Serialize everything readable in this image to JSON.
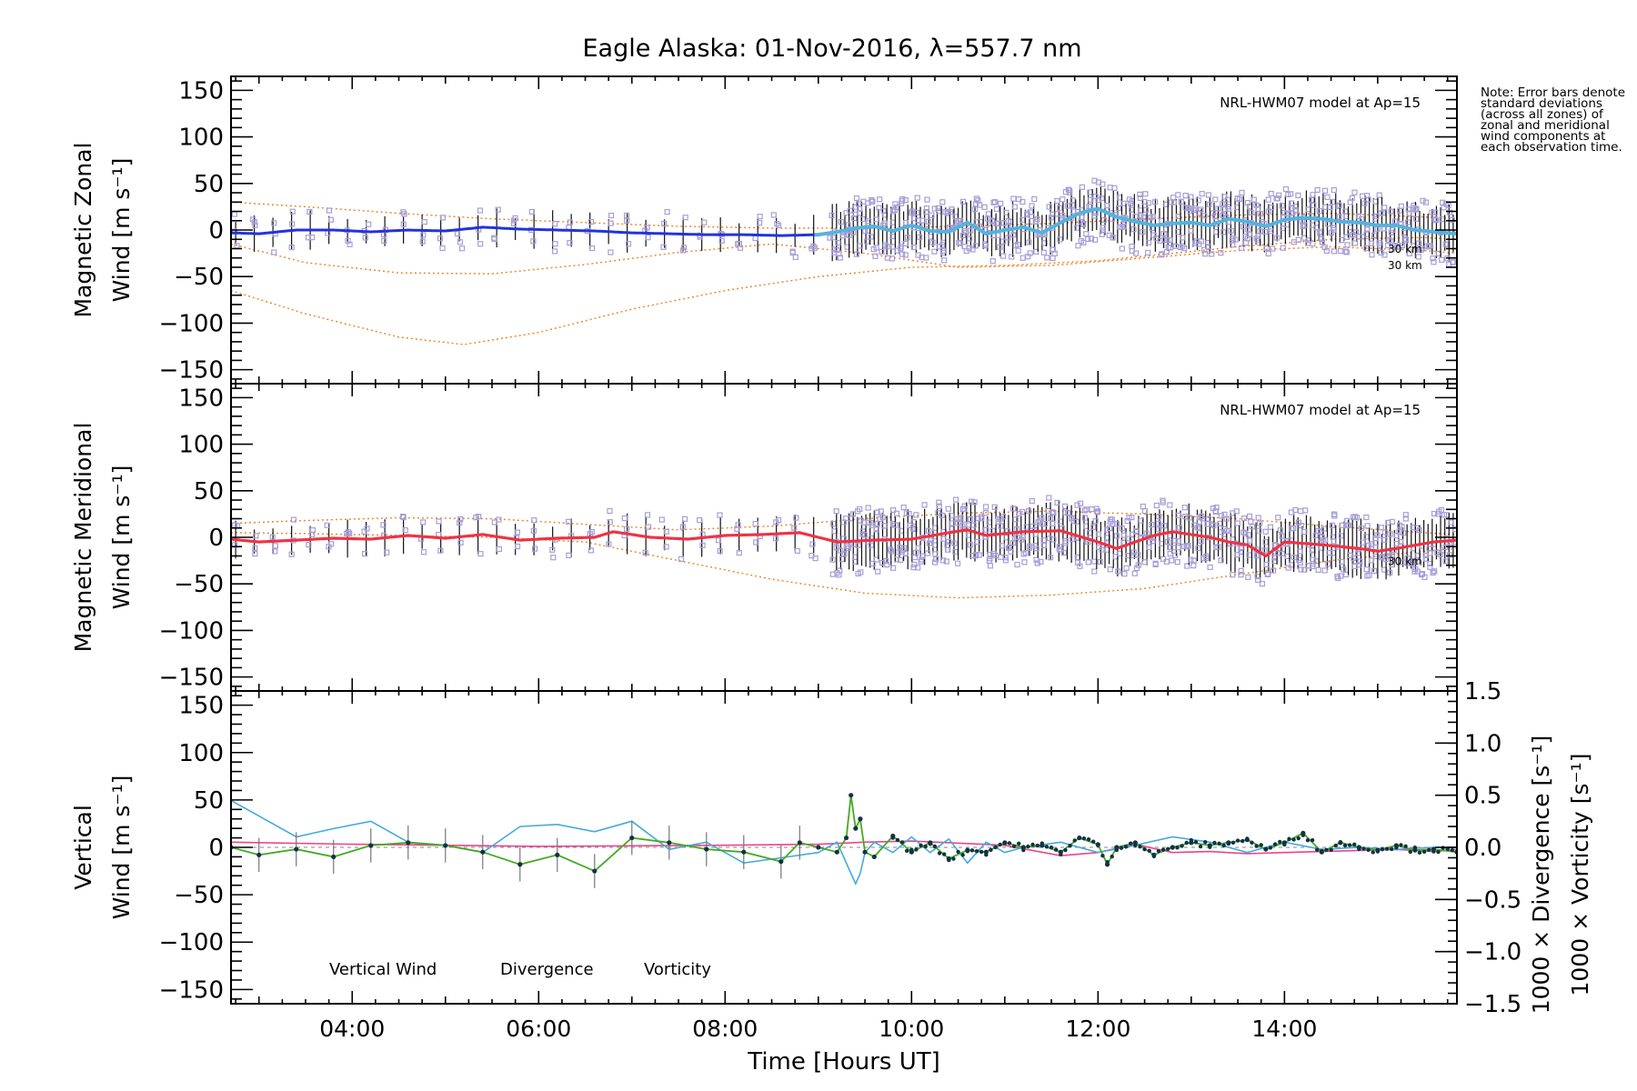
{
  "title": "Eagle Alaska: 01-Nov-2016, λ=557.7 nm",
  "note": "Note: Error bars denote standard deviations (across all zones) of zonal and meridional wind components at each observation time.",
  "colors": {
    "zonal": "#2233dd",
    "zonal_late": "#55b2de",
    "meridional": "#ee3344",
    "vertical": "#44aa22",
    "divergence": "#44aadd",
    "vorticity": "#ee4488",
    "model": "#ee8833",
    "scatter": "#a79fd6"
  },
  "chart_data": [
    {
      "type": "line",
      "panel": "zonal",
      "ylabel_line1": "Magnetic Zonal",
      "ylabel_line2": "Wind",
      "ylabel_unit": "[m s⁻¹]",
      "model_label": "NRL-HWM07 model at Ap=15",
      "model_annotations": [
        "30 km",
        "30 km"
      ],
      "xlim": [
        2.7,
        15.85
      ],
      "ylim": [
        -165,
        165
      ],
      "yticks": [
        150,
        100,
        50,
        0,
        -50,
        -100,
        -150
      ],
      "series": [
        {
          "x": [
            2.7,
            3.0,
            3.4,
            3.8,
            4.2,
            4.6,
            5.0,
            5.4,
            5.8,
            6.2,
            6.6,
            7.0,
            7.4,
            7.8,
            8.2,
            8.6,
            9.0,
            9.2,
            9.4,
            9.6,
            9.8,
            10.0,
            10.2,
            10.4,
            10.6,
            10.8,
            11.0,
            11.2,
            11.4,
            11.6,
            11.8,
            12.0,
            12.2,
            12.4,
            12.6,
            12.8,
            13.0,
            13.2,
            13.4,
            13.6,
            13.8,
            14.0,
            14.2,
            14.4,
            14.6,
            14.8,
            15.0,
            15.2,
            15.4,
            15.6,
            15.85
          ],
          "y": [
            -3,
            -4,
            0,
            0,
            -2,
            0,
            -1,
            3,
            1,
            0,
            -1,
            -3,
            -4,
            -5,
            -5,
            -6,
            -5,
            -2,
            2,
            4,
            -1,
            5,
            -1,
            -2,
            8,
            -4,
            0,
            3,
            -3,
            8,
            18,
            23,
            14,
            9,
            5,
            7,
            8,
            5,
            12,
            9,
            4,
            11,
            13,
            12,
            9,
            8,
            5,
            5,
            0,
            -2,
            -4
          ]
        }
      ],
      "model_curves": [
        {
          "x": [
            2.7,
            3.5,
            4.5,
            5.5,
            6.5,
            7.5,
            8.5,
            9.5,
            10.5,
            11.5,
            12.5,
            13.5,
            14.5,
            15.5,
            15.85
          ],
          "y": [
            30,
            25,
            18,
            12,
            8,
            4,
            2,
            2,
            4,
            7,
            12,
            16,
            18,
            14,
            12
          ]
        },
        {
          "x": [
            2.7,
            3.5,
            4.5,
            5.5,
            6.5,
            7.5,
            8.5,
            9.5,
            10.5,
            11.5,
            12.5,
            13.5,
            14.5,
            15.5,
            15.85
          ],
          "y": [
            -15,
            -35,
            -46,
            -47,
            -37,
            -24,
            -15,
            -25,
            -40,
            -38,
            -30,
            -22,
            -18,
            -22,
            -25
          ]
        },
        {
          "x": [
            2.7,
            3.5,
            4.5,
            5.2,
            6.0,
            7.0,
            8.0,
            9.0,
            10.0,
            11.0,
            12.0,
            12.5,
            13.5,
            14.5,
            15.5,
            15.85
          ],
          "y": [
            -65,
            -90,
            -115,
            -123,
            -110,
            -85,
            -65,
            -50,
            -40,
            -38,
            -33,
            -28,
            -18,
            -10,
            -8,
            -10
          ]
        }
      ]
    },
    {
      "type": "line",
      "panel": "meridional",
      "ylabel_line1": "Magnetic Meridional",
      "ylabel_line2": "Wind",
      "ylabel_unit": "[m s⁻¹]",
      "model_label": "NRL-HWM07 model at Ap=15",
      "model_annotations": [
        "30 km"
      ],
      "xlim": [
        2.7,
        15.85
      ],
      "ylim": [
        -165,
        165
      ],
      "yticks": [
        150,
        100,
        50,
        0,
        -50,
        -100,
        -150
      ],
      "series": [
        {
          "x": [
            2.7,
            3.0,
            3.4,
            3.8,
            4.2,
            4.6,
            5.0,
            5.4,
            5.8,
            6.2,
            6.6,
            6.8,
            7.2,
            7.6,
            8.0,
            8.4,
            8.8,
            9.2,
            9.6,
            10.0,
            10.4,
            10.6,
            10.8,
            11.2,
            11.6,
            12.0,
            12.2,
            12.6,
            12.8,
            13.2,
            13.4,
            13.6,
            13.8,
            14.0,
            14.4,
            14.8,
            15.0,
            15.2,
            15.6,
            15.85
          ],
          "y": [
            -2,
            -5,
            -3,
            -1,
            -2,
            2,
            -1,
            3,
            -3,
            -1,
            0,
            6,
            0,
            -2,
            2,
            3,
            5,
            -5,
            -3,
            -2,
            5,
            8,
            2,
            6,
            7,
            -5,
            -12,
            2,
            6,
            0,
            -5,
            -8,
            -20,
            -5,
            -8,
            -12,
            -15,
            -12,
            -5,
            -3
          ]
        }
      ],
      "model_curves": [
        {
          "x": [
            2.7,
            3.5,
            4.5,
            5.5,
            6.5,
            7.5,
            8.5,
            9.5,
            10.5,
            11.5,
            12.5,
            13.5,
            14.5,
            15.5,
            15.85
          ],
          "y": [
            15,
            18,
            21,
            20,
            14,
            8,
            12,
            20,
            26,
            28,
            25,
            20,
            12,
            5,
            3
          ]
        },
        {
          "x": [
            2.7,
            3.5,
            4.5,
            5.5,
            6.5,
            7.5,
            8.5,
            9.5,
            10.5,
            11.5,
            12.5,
            13.5,
            14.5,
            15.5,
            15.85
          ],
          "y": [
            5,
            4,
            2,
            0,
            -5,
            -25,
            -45,
            -60,
            -65,
            -62,
            -55,
            -40,
            -25,
            -15,
            -12
          ]
        }
      ]
    },
    {
      "type": "line",
      "panel": "vertical",
      "ylabel_line1": "Vertical",
      "ylabel_line2": "Wind",
      "ylabel_unit": "[m s⁻¹]",
      "y2label_div": "1000 × Divergence [s⁻¹]",
      "y2label_vort": "1000 × Vorticity [s⁻¹]",
      "xlim": [
        2.7,
        15.85
      ],
      "ylim": [
        -165,
        165
      ],
      "yticks": [
        150,
        100,
        50,
        0,
        -50,
        -100,
        -150
      ],
      "y2lim": [
        -1.5,
        1.5
      ],
      "y2ticks": [
        1.5,
        1.0,
        0.5,
        0.0,
        -0.5,
        -1.0,
        -1.5
      ],
      "y2ticklabels": [
        "1.5",
        "1.0",
        "0.5",
        "0.0",
        "−0.5",
        "−1.0",
        "−1.5"
      ],
      "xticks": [
        4,
        6,
        8,
        10,
        12,
        14
      ],
      "xticklabels": [
        "04:00",
        "06:00",
        "08:00",
        "10:00",
        "12:00",
        "14:00"
      ],
      "xlabel": "Time [Hours UT]",
      "legend": [
        "Vertical Wind",
        "Divergence",
        "Vorticity"
      ],
      "series": [
        {
          "name": "Vertical Wind",
          "x": [
            2.7,
            3.0,
            3.4,
            3.8,
            4.2,
            4.6,
            5.0,
            5.4,
            5.8,
            6.2,
            6.6,
            7.0,
            7.4,
            7.8,
            8.2,
            8.6,
            8.8,
            9.0,
            9.2,
            9.3,
            9.35,
            9.4,
            9.45,
            9.5,
            9.6,
            9.8,
            10.0,
            10.2,
            10.4,
            10.6,
            10.8,
            11.0,
            11.2,
            11.4,
            11.6,
            11.8,
            12.0,
            12.1,
            12.2,
            12.4,
            12.6,
            12.8,
            13.0,
            13.2,
            13.4,
            13.6,
            13.8,
            14.0,
            14.2,
            14.4,
            14.6,
            14.8,
            15.0,
            15.2,
            15.4,
            15.6,
            15.85
          ],
          "y": [
            0,
            -8,
            -2,
            -10,
            2,
            5,
            2,
            -5,
            -18,
            -8,
            -25,
            10,
            5,
            -2,
            -5,
            -15,
            5,
            0,
            -5,
            10,
            55,
            20,
            30,
            -5,
            -10,
            12,
            -5,
            5,
            -12,
            -3,
            -5,
            5,
            0,
            2,
            -5,
            10,
            3,
            -18,
            0,
            5,
            -8,
            0,
            5,
            2,
            5,
            8,
            -2,
            5,
            15,
            -5,
            5,
            0,
            -3,
            2,
            -3,
            -2,
            -5
          ]
        },
        {
          "name": "Divergence",
          "x": [
            2.7,
            3.0,
            3.4,
            3.8,
            4.2,
            4.6,
            5.0,
            5.4,
            5.8,
            6.2,
            6.6,
            7.0,
            7.4,
            7.8,
            8.2,
            8.6,
            9.0,
            9.2,
            9.4,
            9.45,
            9.5,
            9.6,
            9.8,
            10.0,
            10.2,
            10.4,
            10.6,
            10.8,
            11.0,
            11.2,
            11.6,
            12.0,
            12.4,
            12.8,
            13.2,
            13.6,
            14.0,
            14.4,
            14.8,
            15.2,
            15.6,
            15.85
          ],
          "y": [
            0.45,
            0.3,
            0.1,
            0.18,
            0.25,
            0.05,
            0.02,
            -0.05,
            0.2,
            0.22,
            0.15,
            0.25,
            -0.02,
            0.05,
            -0.15,
            -0.1,
            -0.05,
            0.05,
            -0.35,
            -0.25,
            -0.05,
            0.05,
            -0.05,
            0.1,
            -0.05,
            0.08,
            -0.15,
            0.05,
            -0.05,
            0.0,
            0.05,
            -0.05,
            0.02,
            0.1,
            0.05,
            -0.05,
            0.05,
            -0.02,
            0.0,
            -0.02,
            0.0,
            0.0
          ]
        },
        {
          "name": "Vorticity",
          "x": [
            2.7,
            4.0,
            6.0,
            8.0,
            9.0,
            9.5,
            10.0,
            11.0,
            11.6,
            12.0,
            12.4,
            12.8,
            13.2,
            13.6,
            14.0,
            14.4,
            14.8,
            15.2,
            15.6,
            15.85
          ],
          "y": [
            0.05,
            0.03,
            0.01,
            0.02,
            0.03,
            0.05,
            0.06,
            0.02,
            -0.08,
            -0.05,
            0.03,
            -0.05,
            -0.04,
            -0.06,
            -0.05,
            -0.04,
            -0.03,
            -0.02,
            -0.04,
            -0.02
          ]
        }
      ]
    }
  ]
}
